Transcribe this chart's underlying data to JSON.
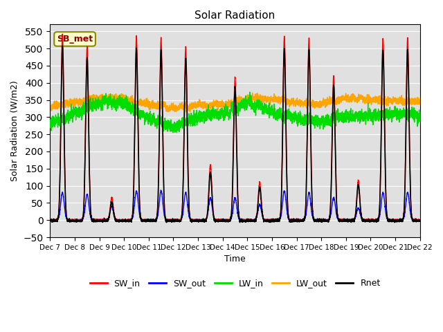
{
  "title": "Solar Radiation",
  "ylabel": "Solar Radiation (W/m2)",
  "xlabel": "Time",
  "annotation": "SB_met",
  "ylim": [
    -50,
    570
  ],
  "yticks": [
    -50,
    0,
    50,
    100,
    150,
    200,
    250,
    300,
    350,
    400,
    450,
    500,
    550
  ],
  "colors": {
    "SW_in": "#ff0000",
    "SW_out": "#0000ff",
    "LW_in": "#00dd00",
    "LW_out": "#ffa500",
    "Rnet": "#000000"
  },
  "line_widths": {
    "SW_in": 1.0,
    "SW_out": 1.0,
    "LW_in": 1.0,
    "LW_out": 1.0,
    "Rnet": 1.2
  },
  "background_color": "#e0e0e0",
  "start_day": 7,
  "end_day": 22,
  "n_points": 5000,
  "peak_heights_swin": {
    "7": 540,
    "8": 505,
    "9": 65,
    "10": 535,
    "11": 530,
    "12": 505,
    "13": 160,
    "14": 415,
    "15": 110,
    "16": 535,
    "17": 530,
    "18": 420,
    "19": 115,
    "20": 530,
    "21": 530
  },
  "peak_heights_swout": {
    "7": 80,
    "8": 75,
    "9": 40,
    "10": 85,
    "11": 85,
    "12": 80,
    "13": 65,
    "14": 65,
    "15": 45,
    "16": 85,
    "17": 80,
    "18": 65,
    "19": 35,
    "20": 80,
    "21": 80
  },
  "lw_in_baselines": {
    "7": 280,
    "8": 310,
    "9": 340,
    "10": 340,
    "11": 295,
    "12": 270,
    "13": 300,
    "14": 310,
    "15": 340,
    "16": 315,
    "17": 295,
    "18": 285,
    "19": 305,
    "20": 305,
    "21": 315
  },
  "lw_out_baselines": {
    "7": 330,
    "8": 345,
    "9": 355,
    "10": 355,
    "11": 335,
    "12": 325,
    "13": 335,
    "14": 335,
    "15": 355,
    "16": 355,
    "17": 340,
    "18": 340,
    "19": 355,
    "20": 350,
    "21": 350
  }
}
